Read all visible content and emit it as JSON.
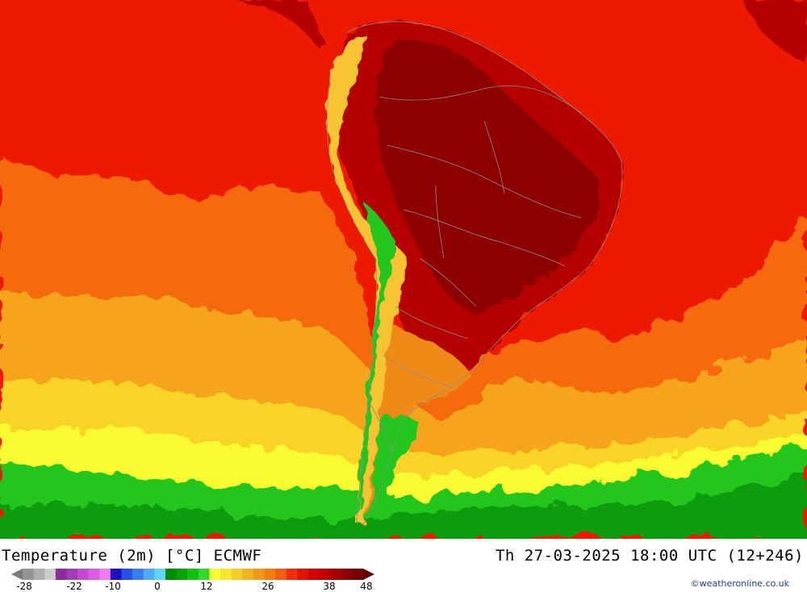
{
  "title": {
    "left": "Temperature (2m) [°C] ECMWF",
    "right": "Th 27-03-2025 18:00 UTC (12+246)"
  },
  "credit": "©weatheronline.co.uk",
  "legend": {
    "tick_labels": [
      "-28",
      "-22",
      "-10",
      "0",
      "12",
      "26",
      "38",
      "48"
    ],
    "colors": [
      "#7a7a7a",
      "#959595",
      "#b0b0b0",
      "#cdcdcd",
      "#8a2f9a",
      "#a43cb8",
      "#c44ad2",
      "#e05ae8",
      "#f07cf7",
      "#1a10c8",
      "#2850e6",
      "#3c7cf0",
      "#4eaaf6",
      "#5cd6fa",
      "#008a00",
      "#00a400",
      "#10c010",
      "#30d830",
      "#ffff30",
      "#f8e62c",
      "#f2d026",
      "#f0b420",
      "#f29818",
      "#f47e10",
      "#f26008",
      "#ee3000",
      "#e41000",
      "#d40000",
      "#c00000",
      "#a80000",
      "#900000",
      "#780000",
      "#600000"
    ]
  },
  "map": {
    "ocean_colors": {
      "hot": "#ee1a00",
      "warm": "#f46a0a",
      "mild": "#f6a41a",
      "cool": "#f8d428",
      "cold": "#fafa32",
      "green": "#22c61a",
      "darkgreen": "#0a9c0a"
    },
    "land_colors": {
      "hot": "#b40000",
      "veryhot": "#8c0000",
      "andes": "#f6c432",
      "patagonia": "#f08a12"
    },
    "border_color": "#8c8c8c"
  }
}
